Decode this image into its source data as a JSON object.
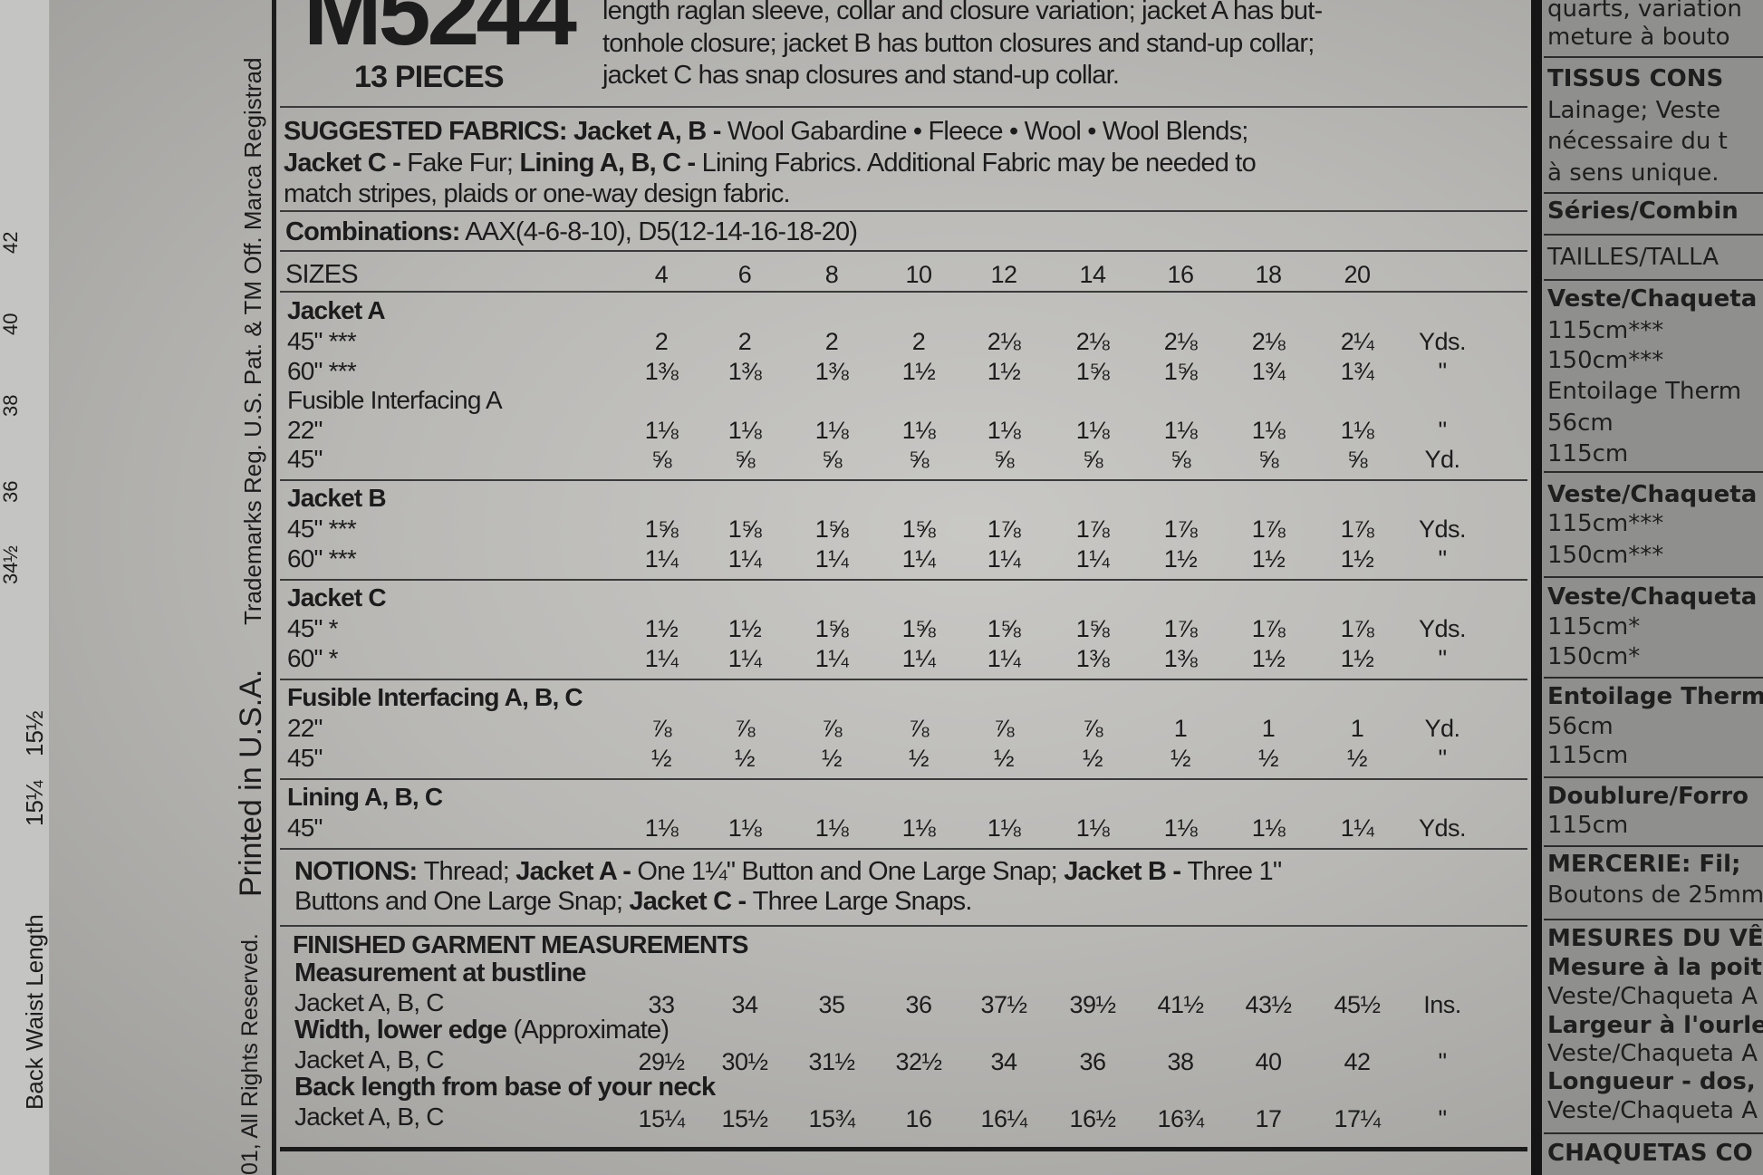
{
  "left_strip": {
    "label": "Back Waist Length",
    "values": [
      "15¼",
      "15½"
    ],
    "upper_values": [
      "34½",
      "36",
      "38",
      "40",
      "42"
    ]
  },
  "vertical_notice": {
    "rights": "01, All Rights Reserved.",
    "printed": "Printed in U.S.A.",
    "trademarks": "Trademarks Reg. U.S. Pat. & TM Off. Marca Registrad"
  },
  "header": {
    "pattern_number": "M5244",
    "pieces": "13 PIECES",
    "description": [
      "length raglan sleeve, collar and closure variation; jacket A has but-",
      "tonhole closure; jacket B has button closures and stand-up collar;",
      "jacket C has snap closures and stand-up collar."
    ]
  },
  "suggested_fabrics": [
    [
      {
        "text": "SUGGESTED FABRICS: ",
        "bold": true
      },
      {
        "text": "Jacket A, B - ",
        "bold": true
      },
      {
        "text": "Wool Gabardine • Fleece • Wool • Wool Blends;",
        "bold": false
      }
    ],
    [
      {
        "text": "Jacket C - ",
        "bold": true
      },
      {
        "text": "Fake Fur; ",
        "bold": false
      },
      {
        "text": "Lining A, B, C - ",
        "bold": true
      },
      {
        "text": "Lining Fabrics. Additional Fabric may be needed to",
        "bold": false
      }
    ],
    [
      {
        "text": "match stripes, plaids or one-way design fabric.",
        "bold": false
      }
    ]
  ],
  "combinations": {
    "label": "Combinations:",
    "value": " AAX(4-6-8-10), D5(12-14-16-18-20)"
  },
  "sizes": {
    "label": "SIZES",
    "values": [
      "4",
      "6",
      "8",
      "10",
      "12",
      "14",
      "16",
      "18",
      "20"
    ]
  },
  "sections": [
    {
      "title": "Jacket A",
      "rows": [
        {
          "label": "45\" ***",
          "values": [
            "2",
            "2",
            "2",
            "2",
            "2⅛",
            "2⅛",
            "2⅛",
            "2⅛",
            "2¼"
          ],
          "unit": "Yds."
        },
        {
          "label": "60\" ***",
          "values": [
            "1⅜",
            "1⅜",
            "1⅜",
            "1½",
            "1½",
            "1⅝",
            "1⅝",
            "1¾",
            "1¾"
          ],
          "unit": "\""
        },
        {
          "label": "Fusible Interfacing A",
          "values": [],
          "unit": ""
        },
        {
          "label": "22\"",
          "values": [
            "1⅛",
            "1⅛",
            "1⅛",
            "1⅛",
            "1⅛",
            "1⅛",
            "1⅛",
            "1⅛",
            "1⅛"
          ],
          "unit": "\""
        },
        {
          "label": "45\"",
          "values": [
            "⅝",
            "⅝",
            "⅝",
            "⅝",
            "⅝",
            "⅝",
            "⅝",
            "⅝",
            "⅝"
          ],
          "unit": "Yd."
        }
      ]
    },
    {
      "title": "Jacket B",
      "rows": [
        {
          "label": "45\" ***",
          "values": [
            "1⅝",
            "1⅝",
            "1⅝",
            "1⅝",
            "1⅞",
            "1⅞",
            "1⅞",
            "1⅞",
            "1⅞"
          ],
          "unit": "Yds."
        },
        {
          "label": "60\" ***",
          "values": [
            "1¼",
            "1¼",
            "1¼",
            "1¼",
            "1¼",
            "1¼",
            "1½",
            "1½",
            "1½"
          ],
          "unit": "\""
        }
      ]
    },
    {
      "title": "Jacket C",
      "rows": [
        {
          "label": "45\" *",
          "values": [
            "1½",
            "1½",
            "1⅝",
            "1⅝",
            "1⅝",
            "1⅝",
            "1⅞",
            "1⅞",
            "1⅞"
          ],
          "unit": "Yds."
        },
        {
          "label": "60\" *",
          "values": [
            "1¼",
            "1¼",
            "1¼",
            "1¼",
            "1¼",
            "1⅜",
            "1⅜",
            "1½",
            "1½"
          ],
          "unit": "\""
        }
      ]
    },
    {
      "title": "Fusible Interfacing A, B, C",
      "rows": [
        {
          "label": "22\"",
          "values": [
            "⅞",
            "⅞",
            "⅞",
            "⅞",
            "⅞",
            "⅞",
            "1",
            "1",
            "1"
          ],
          "unit": "Yd."
        },
        {
          "label": "45\"",
          "values": [
            "½",
            "½",
            "½",
            "½",
            "½",
            "½",
            "½",
            "½",
            "½"
          ],
          "unit": "\""
        }
      ]
    },
    {
      "title": "Lining A, B, C",
      "rows": [
        {
          "label": "45\"",
          "values": [
            "1⅛",
            "1⅛",
            "1⅛",
            "1⅛",
            "1⅛",
            "1⅛",
            "1⅛",
            "1⅛",
            "1¼"
          ],
          "unit": "Yds."
        }
      ]
    }
  ],
  "notions": [
    [
      {
        "text": "NOTIONS: ",
        "bold": true
      },
      {
        "text": "Thread; ",
        "bold": false
      },
      {
        "text": "Jacket A - ",
        "bold": true
      },
      {
        "text": "One 1¼\" Button and One Large Snap; ",
        "bold": false
      },
      {
        "text": "Jacket B - ",
        "bold": true
      },
      {
        "text": "Three 1\"",
        "bold": false
      }
    ],
    [
      {
        "text": "Buttons and One Large Snap; ",
        "bold": false
      },
      {
        "text": "Jacket C - ",
        "bold": true
      },
      {
        "text": "Three Large Snaps.",
        "bold": false
      }
    ]
  ],
  "finished": {
    "title": "FINISHED GARMENT MEASUREMENTS",
    "groups": [
      {
        "heading": "Measurement at bustline",
        "note": "",
        "label": "Jacket A, B, C",
        "values": [
          "33",
          "34",
          "35",
          "36",
          "37½",
          "39½",
          "41½",
          "43½",
          "45½"
        ],
        "unit": "Ins."
      },
      {
        "heading": "Width, lower edge",
        "note": " (Approximate)",
        "label": "Jacket A, B, C",
        "values": [
          "29½",
          "30½",
          "31½",
          "32½",
          "34",
          "36",
          "38",
          "40",
          "42"
        ],
        "unit": "\""
      },
      {
        "heading": "Back length from base of your neck",
        "note": "",
        "label": "Jacket A, B, C",
        "values": [
          "15¼",
          "15½",
          "15¾",
          "16",
          "16¼",
          "16½",
          "16¾",
          "17",
          "17¼"
        ],
        "unit": "\""
      }
    ]
  },
  "right_panel": [
    {
      "text": "quarts, variation",
      "bold": false
    },
    {
      "text": "meture à bouto",
      "bold": false
    },
    {
      "text": "TISSUS CONS",
      "bold": true
    },
    {
      "text": "Lainage; Veste",
      "bold": false
    },
    {
      "text": "nécessaire du t",
      "bold": false
    },
    {
      "text": "à sens unique.",
      "bold": false
    },
    {
      "text": "Séries/Combin",
      "bold": true
    },
    {
      "text": "TAILLES/TALLA",
      "bold": false
    },
    {
      "text": "Veste/Chaqueta",
      "bold": true
    },
    {
      "text": "115cm***",
      "bold": false
    },
    {
      "text": "150cm***",
      "bold": false
    },
    {
      "text": "Entoilage Therm",
      "bold": false
    },
    {
      "text": "56cm",
      "bold": false
    },
    {
      "text": "115cm",
      "bold": false
    },
    {
      "text": "Veste/Chaqueta",
      "bold": true
    },
    {
      "text": "115cm***",
      "bold": false
    },
    {
      "text": "150cm***",
      "bold": false
    },
    {
      "text": "Veste/Chaqueta",
      "bold": true
    },
    {
      "text": "115cm*",
      "bold": false
    },
    {
      "text": "150cm*",
      "bold": false
    },
    {
      "text": "Entoilage Therm",
      "bold": true
    },
    {
      "text": "56cm",
      "bold": false
    },
    {
      "text": "115cm",
      "bold": false
    },
    {
      "text": "Doublure/Forro",
      "bold": true
    },
    {
      "text": "115cm",
      "bold": false
    },
    {
      "text": "MERCERIE: Fil;",
      "bold": true
    },
    {
      "text": "Boutons de 25mm",
      "bold": false
    },
    {
      "text": "MESURES DU VÊ",
      "bold": true
    },
    {
      "text": "Mesure à la poit",
      "bold": true
    },
    {
      "text": "Veste/Chaqueta A",
      "bold": false
    },
    {
      "text": "Largeur à l'ourle",
      "bold": true
    },
    {
      "text": "Veste/Chaqueta A",
      "bold": false
    },
    {
      "text": "Longueur - dos,",
      "bold": true
    },
    {
      "text": "Veste/Chaqueta A",
      "bold": false
    },
    {
      "text": "CHAQUETAS CO",
      "bold": true
    }
  ],
  "colors": {
    "paper": "#b9b8b5",
    "ink": "#1c1c1c",
    "right_panel": "#8f8f8d"
  }
}
